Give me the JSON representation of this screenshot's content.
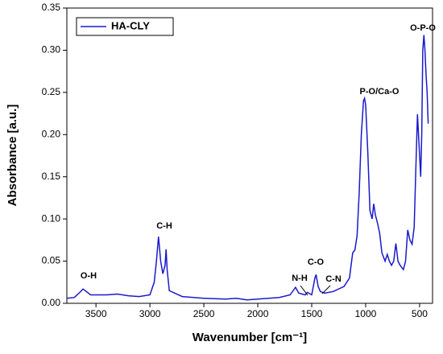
{
  "chart_data": {
    "type": "line",
    "xlabel": "Wavenumber [cm⁻¹]",
    "ylabel": "Absorbance [a.u.]",
    "xlim": [
      3770,
      380
    ],
    "ylim": [
      0,
      0.35
    ],
    "xticks": [
      3500,
      3000,
      2500,
      2000,
      1500,
      1000,
      500
    ],
    "yticks": [
      {
        "value": 0,
        "label": "0.00"
      },
      0.05,
      {
        "value": 0.1,
        "label": "0.10"
      },
      0.15,
      {
        "value": 0.2,
        "label": "0.20"
      },
      0.25,
      {
        "value": 0.3,
        "label": "0.30"
      },
      0.35
    ],
    "legend": "upper left",
    "annotations": [
      "O-H",
      "C-H",
      "N-H",
      "C-O",
      "C-N",
      "P-O/Ca-O",
      "O-P-O"
    ],
    "series": [
      {
        "name": "HA-CLY",
        "color": "#1a1acc",
        "x": [
          3770,
          3700,
          3650,
          3620,
          3600,
          3550,
          3400,
          3300,
          3200,
          3100,
          3000,
          2960,
          2940,
          2920,
          2900,
          2880,
          2860,
          2850,
          2840,
          2820,
          2700,
          2500,
          2300,
          2200,
          2100,
          2000,
          1900,
          1800,
          1700,
          1650,
          1620,
          1560,
          1540,
          1500,
          1470,
          1460,
          1440,
          1420,
          1380,
          1300,
          1200,
          1150,
          1120,
          1100,
          1080,
          1060,
          1040,
          1020,
          1010,
          1000,
          980,
          960,
          940,
          925,
          910,
          890,
          870,
          850,
          820,
          800,
          780,
          760,
          740,
          720,
          700,
          680,
          650,
          630,
          610,
          590,
          570,
          550,
          530,
          520,
          510,
          490,
          480,
          470,
          460,
          450,
          440,
          430,
          420
        ],
        "values": [
          0.006,
          0.007,
          0.013,
          0.017,
          0.015,
          0.01,
          0.01,
          0.011,
          0.009,
          0.008,
          0.01,
          0.025,
          0.05,
          0.079,
          0.05,
          0.035,
          0.045,
          0.064,
          0.04,
          0.015,
          0.008,
          0.006,
          0.005,
          0.006,
          0.004,
          0.005,
          0.006,
          0.007,
          0.01,
          0.019,
          0.012,
          0.01,
          0.013,
          0.01,
          0.03,
          0.034,
          0.02,
          0.014,
          0.012,
          0.014,
          0.02,
          0.03,
          0.06,
          0.063,
          0.08,
          0.13,
          0.2,
          0.24,
          0.243,
          0.235,
          0.18,
          0.11,
          0.1,
          0.118,
          0.105,
          0.095,
          0.083,
          0.06,
          0.05,
          0.058,
          0.05,
          0.045,
          0.05,
          0.071,
          0.05,
          0.045,
          0.04,
          0.05,
          0.087,
          0.075,
          0.07,
          0.09,
          0.18,
          0.224,
          0.2,
          0.15,
          0.2,
          0.3,
          0.318,
          0.3,
          0.27,
          0.25,
          0.213
        ]
      }
    ]
  }
}
